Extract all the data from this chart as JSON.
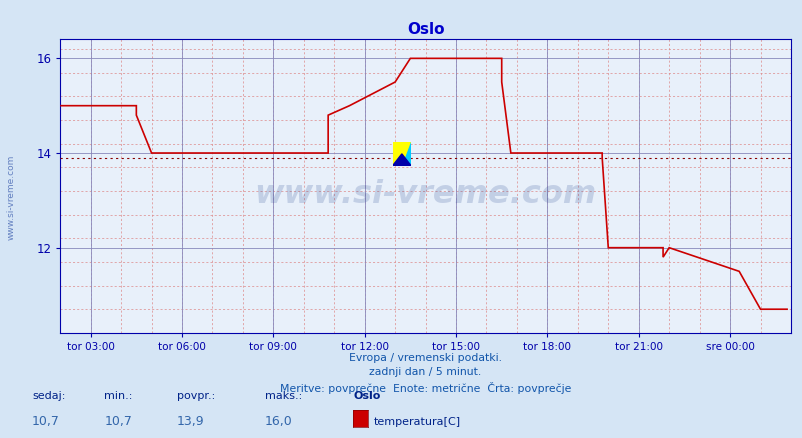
{
  "title": "Oslo",
  "xlabel_text": "Evropa / vremenski podatki.\nzadnji dan / 5 minut.\nMeritve: povprečne  Enote: metrične  Črta: povprečje",
  "background_color": "#d5e5f5",
  "plot_bg_color": "#e8f0fa",
  "grid_color_major": "#8888bb",
  "grid_color_dashed": "#cc4444",
  "line_color": "#cc0000",
  "avg_line_color": "#cc0000",
  "avg_value": 13.9,
  "ylim": [
    10.2,
    16.4
  ],
  "yticks": [
    12,
    14,
    16
  ],
  "title_color": "#0000cc",
  "axis_color": "#0000aa",
  "footer_color": "#1155aa",
  "watermark_color": "#1a3a8a",
  "watermark_alpha": 0.18,
  "sidebar_text": "www.si-vreme.com",
  "sedaj_label": "sedaj:",
  "min_label": "min.:",
  "povpr_label": "povpr.:",
  "maks_label": "maks.:",
  "sedaj_val": "10,7",
  "min_val": "10,7",
  "povpr_val": "13,9",
  "maks_val": "16,0",
  "location_label": "Oslo",
  "legend_label": "temperatura[C]",
  "legend_color": "#cc0000",
  "xtick_positions": [
    3.0,
    6.0,
    9.0,
    12.0,
    15.0,
    18.0,
    21.0,
    24.0
  ],
  "xtick_labels": [
    "tor 03:00",
    "tor 06:00",
    "tor 09:00",
    "tor 12:00",
    "tor 15:00",
    "tor 18:00",
    "tor 21:00",
    "sre 00:00"
  ],
  "xmin": 2.0,
  "xmax": 26.0,
  "time_points": [
    2.0,
    4.5,
    4.5,
    5.0,
    5.0,
    10.8,
    10.8,
    11.5,
    11.5,
    13.0,
    13.0,
    13.5,
    13.5,
    16.5,
    16.5,
    16.8,
    16.8,
    19.8,
    19.8,
    20.0,
    20.0,
    21.8,
    21.8,
    22.0,
    22.0,
    24.3,
    24.3,
    25.0,
    25.0,
    25.9
  ],
  "temp_values": [
    15.0,
    15.0,
    14.8,
    14.0,
    14.0,
    14.0,
    14.8,
    15.0,
    15.0,
    15.5,
    15.5,
    16.0,
    16.0,
    16.0,
    15.5,
    14.0,
    14.0,
    14.0,
    13.9,
    12.0,
    12.0,
    12.0,
    11.8,
    12.0,
    12.0,
    11.5,
    11.5,
    10.7,
    10.7,
    10.7
  ]
}
